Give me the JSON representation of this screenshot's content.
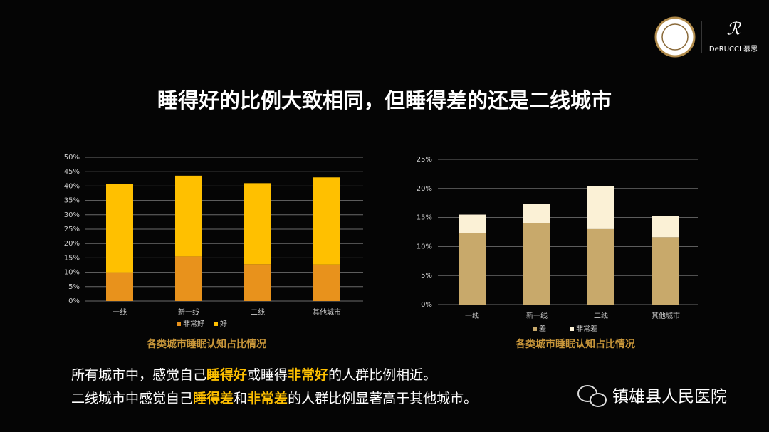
{
  "title": "睡得好的比例大致相同，但睡得差的还是二线城市",
  "logo": "DeRUCCI 慕思",
  "watermark": "镇雄县人民医院",
  "body": [
    [
      {
        "text": "所有城市中，感觉自己",
        "bold": false
      },
      {
        "text": "睡得好",
        "bold": true
      },
      {
        "text": "或睡得",
        "bold": false
      },
      {
        "text": "非常好",
        "bold": true
      },
      {
        "text": "的人群比例相近。",
        "bold": false
      }
    ],
    [
      {
        "text": "二线城市中感觉自己",
        "bold": false
      },
      {
        "text": "睡得差",
        "bold": true
      },
      {
        "text": "和",
        "bold": false
      },
      {
        "text": "非常差",
        "bold": true
      },
      {
        "text": "的人群比例显著高于其他城市。",
        "bold": false
      }
    ]
  ],
  "chart_data": [
    {
      "type": "stacked-bar",
      "title": "各类城市睡眠认知占比情况",
      "categories": [
        "一线",
        "新一线",
        "二线",
        "其他城市"
      ],
      "series": [
        {
          "name": "非常好",
          "color": "#e8921c",
          "values": [
            10,
            15.5,
            12.8,
            12.7
          ]
        },
        {
          "name": "好",
          "color": "#ffc000",
          "values": [
            30.8,
            28.1,
            28.2,
            30.3
          ]
        }
      ],
      "ylim": [
        0,
        50
      ],
      "yticks": [
        {
          "value": 0,
          "label": "0%"
        },
        {
          "value": 5,
          "label": "5%"
        },
        {
          "value": 10,
          "label": "10%"
        },
        {
          "value": 15,
          "label": "15%"
        },
        {
          "value": 20,
          "label": "20%"
        },
        {
          "value": 25,
          "label": "25%"
        },
        {
          "value": 30,
          "label": "30%"
        },
        {
          "value": 35,
          "label": "35%"
        },
        {
          "value": 40,
          "label": "40%"
        },
        {
          "value": 45,
          "label": "45%"
        },
        {
          "value": 50,
          "label": "50%"
        }
      ],
      "grid": true,
      "legend": "bottom"
    },
    {
      "type": "stacked-bar",
      "title": "各类城市睡眠认知占比情况",
      "categories": [
        "一线",
        "新一线",
        "二线",
        "其他城市"
      ],
      "series": [
        {
          "name": "差",
          "color": "#c8a96b",
          "values": [
            12.3,
            14,
            13,
            11.6
          ]
        },
        {
          "name": "非常差",
          "color": "#fbf1d6",
          "values": [
            3.2,
            3.4,
            7.4,
            3.6
          ]
        }
      ],
      "ylim": [
        0,
        25
      ],
      "yticks": [
        {
          "value": 0,
          "label": "0%"
        },
        {
          "value": 5,
          "label": "5%"
        },
        {
          "value": 10,
          "label": "10%"
        },
        {
          "value": 15,
          "label": "15%"
        },
        {
          "value": 20,
          "label": "20%"
        },
        {
          "value": 25,
          "label": "25%"
        }
      ],
      "grid": true,
      "legend": "bottom"
    }
  ]
}
